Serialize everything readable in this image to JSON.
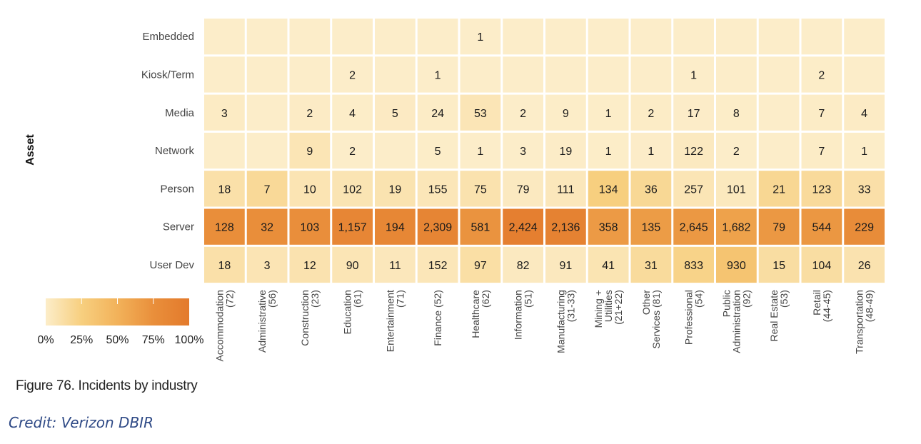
{
  "chart_data": {
    "type": "heatmap",
    "ylabel": "Asset",
    "rows": [
      "Embedded",
      "Kiosk/Term",
      "Media",
      "Network",
      "Person",
      "Server",
      "User Dev"
    ],
    "columns": [
      [
        "Accommodation",
        "(72)"
      ],
      [
        "Administrative",
        "(56)"
      ],
      [
        "Construction",
        "(23)"
      ],
      [
        "Education",
        "(61)"
      ],
      [
        "Entertainment",
        "(71)"
      ],
      [
        "Finance (52)"
      ],
      [
        "Healthcare",
        "(62)"
      ],
      [
        "Information",
        "(51)"
      ],
      [
        "Manufacturing",
        "(31-33)"
      ],
      [
        "Mining +",
        "Utilities",
        "(21+22)"
      ],
      [
        "Other",
        "Services (81)"
      ],
      [
        "Professional",
        "(54)"
      ],
      [
        "Public",
        "Administration",
        "(92)"
      ],
      [
        "Real Estate",
        "(53)"
      ],
      [
        "Retail",
        "(44-45)"
      ],
      [
        "Transportation",
        "(48-49)"
      ]
    ],
    "values": [
      [
        null,
        null,
        null,
        null,
        null,
        null,
        1,
        null,
        null,
        null,
        null,
        null,
        null,
        null,
        null,
        null
      ],
      [
        null,
        null,
        null,
        2,
        null,
        1,
        null,
        null,
        null,
        null,
        null,
        1,
        null,
        null,
        2,
        null
      ],
      [
        3,
        null,
        2,
        4,
        5,
        24,
        53,
        2,
        9,
        1,
        2,
        17,
        8,
        null,
        7,
        4
      ],
      [
        null,
        null,
        9,
        2,
        null,
        5,
        1,
        3,
        19,
        1,
        1,
        122,
        2,
        null,
        7,
        1
      ],
      [
        18,
        7,
        10,
        102,
        19,
        155,
        75,
        79,
        111,
        134,
        36,
        257,
        101,
        21,
        123,
        33
      ],
      [
        128,
        32,
        103,
        1157,
        194,
        2309,
        581,
        2424,
        2136,
        358,
        135,
        2645,
        1682,
        79,
        544,
        229
      ],
      [
        18,
        3,
        12,
        90,
        11,
        152,
        97,
        82,
        91,
        41,
        31,
        833,
        930,
        15,
        104,
        26
      ]
    ],
    "color_scale": {
      "stops": [
        "#fcedc9",
        "#f7cf7f",
        "#f2b25a",
        "#e98f3b",
        "#e37a2c"
      ],
      "tick_labels": [
        "0%",
        "25%",
        "50%",
        "75%",
        "100%"
      ],
      "normalization": "share of column total"
    }
  },
  "caption": "Figure 76. Incidents by industry",
  "credit": "Credit: Verizon DBIR"
}
